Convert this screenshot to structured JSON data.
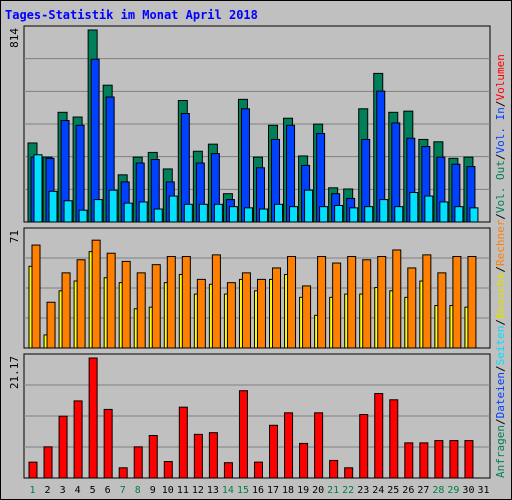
{
  "title": "Tages-Statistik im Monat April 2018",
  "colors": {
    "background": "#c0c0c0",
    "grid": "#808080",
    "title": "#0000ff",
    "anfragen": "#00805a",
    "dateien": "#0040ff",
    "seiten": "#00e0ff",
    "besuche": "#ffff00",
    "rechner": "#ff8000",
    "volumen": "#ff0000",
    "weekday_label": "#000000",
    "weekend_label": "#008040"
  },
  "chart_data": [
    {
      "type": "bar",
      "panel": "top",
      "ymax_label": "814",
      "ylim": [
        0,
        814
      ],
      "categories": [
        "1",
        "2",
        "3",
        "4",
        "5",
        "6",
        "7",
        "8",
        "9",
        "10",
        "11",
        "12",
        "13",
        "14",
        "15",
        "16",
        "17",
        "18",
        "19",
        "20",
        "21",
        "22",
        "23",
        "24",
        "25",
        "26",
        "27",
        "28",
        "29",
        "30",
        "31"
      ],
      "series": [
        {
          "name": "Anfragen",
          "values": [
            335,
            275,
            465,
            445,
            814,
            580,
            200,
            275,
            295,
            225,
            515,
            300,
            330,
            120,
            520,
            275,
            410,
            440,
            280,
            415,
            145,
            140,
            480,
            630,
            465,
            470,
            350,
            340,
            270,
            275,
            0
          ]
        },
        {
          "name": "Dateien",
          "values": [
            275,
            270,
            430,
            410,
            690,
            530,
            170,
            250,
            265,
            170,
            460,
            250,
            290,
            95,
            480,
            230,
            350,
            410,
            240,
            375,
            120,
            100,
            350,
            555,
            420,
            355,
            320,
            275,
            245,
            235,
            0
          ]
        },
        {
          "name": "Seiten",
          "values": [
            285,
            130,
            90,
            50,
            95,
            135,
            80,
            85,
            55,
            110,
            75,
            75,
            75,
            65,
            60,
            55,
            75,
            65,
            135,
            65,
            70,
            60,
            65,
            95,
            65,
            125,
            110,
            85,
            65,
            60,
            0
          ]
        }
      ]
    },
    {
      "type": "bar",
      "panel": "middle",
      "ymax_label": "71",
      "ylim": [
        0,
        71
      ],
      "categories": [
        "1",
        "2",
        "3",
        "4",
        "5",
        "6",
        "7",
        "8",
        "9",
        "10",
        "11",
        "12",
        "13",
        "14",
        "15",
        "16",
        "17",
        "18",
        "19",
        "20",
        "21",
        "22",
        "23",
        "24",
        "25",
        "26",
        "27",
        "28",
        "29",
        "30",
        "31"
      ],
      "series": [
        {
          "name": "Besuche",
          "values": [
            50,
            8,
            35,
            41,
            59,
            43,
            40,
            24,
            25,
            40,
            45,
            33,
            39,
            33,
            42,
            35,
            42,
            45,
            31,
            20,
            31,
            33,
            33,
            37,
            35,
            31,
            41,
            26,
            26,
            25,
            0
          ]
        },
        {
          "name": "Rechner",
          "values": [
            63,
            28,
            46,
            54,
            66,
            58,
            53,
            46,
            51,
            56,
            56,
            42,
            57,
            40,
            46,
            42,
            49,
            56,
            38,
            56,
            52,
            56,
            54,
            56,
            60,
            49,
            57,
            46,
            56,
            56,
            0
          ]
        }
      ]
    },
    {
      "type": "bar",
      "panel": "bottom",
      "ymax_label": "21.17",
      "ylim": [
        0,
        21.17
      ],
      "y_unit": "MB",
      "categories": [
        "1",
        "2",
        "3",
        "4",
        "5",
        "6",
        "7",
        "8",
        "9",
        "10",
        "11",
        "12",
        "13",
        "14",
        "15",
        "16",
        "17",
        "18",
        "19",
        "20",
        "21",
        "22",
        "23",
        "24",
        "25",
        "26",
        "27",
        "28",
        "29",
        "30",
        "31"
      ],
      "series": [
        {
          "name": "Volumen",
          "values": [
            2.8,
            5.5,
            10.9,
            13.6,
            21.17,
            12.1,
            1.8,
            5.5,
            7.5,
            2.9,
            12.5,
            7.7,
            8.0,
            2.7,
            15.4,
            2.8,
            9.3,
            11.5,
            6.1,
            11.5,
            3.1,
            1.8,
            11.2,
            14.9,
            13.8,
            6.2,
            6.2,
            6.6,
            6.6,
            6.6,
            0
          ]
        }
      ]
    }
  ],
  "x_axis": {
    "labels": [
      "1",
      "2",
      "3",
      "4",
      "5",
      "6",
      "7",
      "8",
      "9",
      "10",
      "11",
      "12",
      "13",
      "14",
      "15",
      "16",
      "17",
      "18",
      "19",
      "20",
      "21",
      "22",
      "23",
      "24",
      "25",
      "26",
      "27",
      "28",
      "29",
      "30",
      "31"
    ],
    "weekend_days": [
      "1",
      "7",
      "8",
      "14",
      "15",
      "21",
      "22",
      "28",
      "29"
    ]
  },
  "legend": [
    {
      "text": "Anfragen",
      "color": "#00805a"
    },
    {
      "text": "/",
      "color": "#000000"
    },
    {
      "text": "Dateien",
      "color": "#0040ff"
    },
    {
      "text": "/",
      "color": "#000000"
    },
    {
      "text": "Seiten",
      "color": "#00e0ff"
    },
    {
      "text": "/",
      "color": "#000000"
    },
    {
      "text": "Besuche",
      "color": "#e0e000"
    },
    {
      "text": "/",
      "color": "#000000"
    },
    {
      "text": "Rechner",
      "color": "#ff8000"
    },
    {
      "text": "/",
      "color": "#000000"
    },
    {
      "text": "Vol. Out",
      "color": "#00805a"
    },
    {
      "text": "/",
      "color": "#000000"
    },
    {
      "text": "Vol. In",
      "color": "#0040ff"
    },
    {
      "text": "/",
      "color": "#000000"
    },
    {
      "text": "Volumen",
      "color": "#ff0000"
    }
  ]
}
